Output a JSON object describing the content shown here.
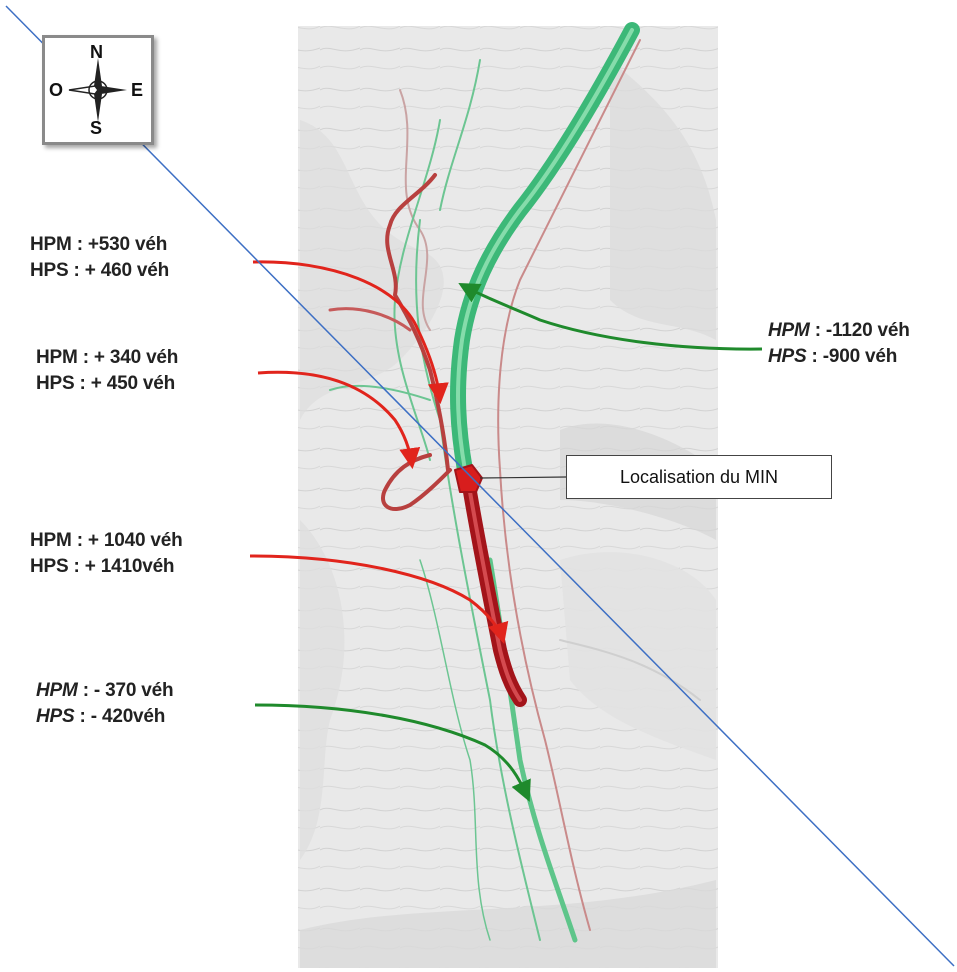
{
  "compass": {
    "north": "N",
    "south": "S",
    "east": "E",
    "west": "O"
  },
  "callout": {
    "min_location": "Localisation du MIN"
  },
  "flow_labels": [
    {
      "id": "north-west-upper",
      "trend": "increase",
      "hpm_key": "HPM",
      "hpm_value": " : +530 véh",
      "hps_key": "HPS",
      "hps_value": " : + 460 véh"
    },
    {
      "id": "north-west-lower",
      "trend": "increase",
      "hpm_key": "HPM",
      "hpm_value": " : + 340 véh",
      "hps_key": "HPS",
      "hps_value": " : + 450 véh"
    },
    {
      "id": "south-west-upper",
      "trend": "increase",
      "hpm_key": "HPM",
      "hpm_value": " : + 1040 véh",
      "hps_key": "HPS",
      "hps_value": " : + 1410véh"
    },
    {
      "id": "south-west-lower",
      "trend": "decrease",
      "hpm_key": "HPM",
      "hpm_value": " : - 370 véh",
      "hps_key": "HPS",
      "hps_value": " : - 420véh"
    },
    {
      "id": "east",
      "trend": "decrease",
      "hpm_key": "HPM",
      "hpm_value": " : -1120 véh",
      "hps_key": "HPS",
      "hps_value": " : -900 véh"
    }
  ],
  "colors": {
    "increase": "#e1241c",
    "decrease": "#1f8a2c",
    "road_increase": "#a3141a",
    "road_decrease": "#3cb878",
    "diagonal_line": "#3d6fc4",
    "map_background": "#e9e9e9"
  }
}
